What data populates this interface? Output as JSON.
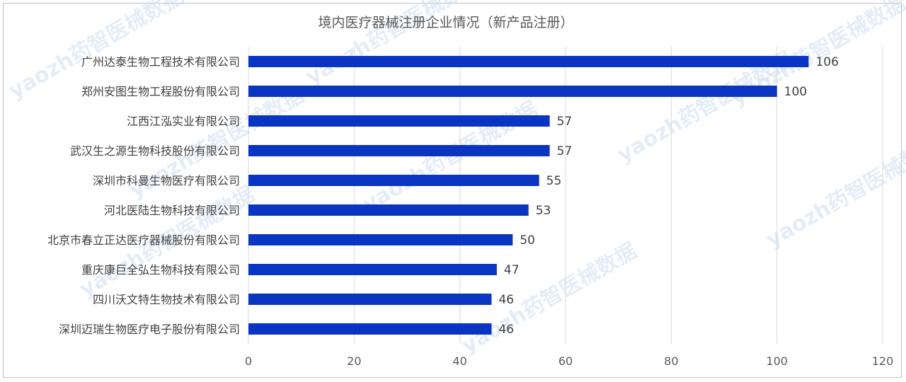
{
  "chart_data": {
    "type": "bar",
    "orientation": "horizontal",
    "title": "境内医疗器械注册企业情况（新产品注册）",
    "categories": [
      "广州达泰生物工程技术有限公司",
      "郑州安图生物工程股份有限公司",
      "江西江泓实业有限公司",
      "武汉生之源生物科技股份有限公司",
      "深圳市科曼生物医疗有限公司",
      "河北医陆生物科技有限公司",
      "北京市春立正达医疗器械股份有限公司",
      "重庆康巨全弘生物科技有限公司",
      "四川沃文特生物技术有限公司",
      "深圳迈瑞生物医疗电子股份有限公司"
    ],
    "values": [
      106,
      100,
      57,
      57,
      55,
      53,
      50,
      47,
      46,
      46
    ],
    "xlim": [
      0,
      120
    ],
    "xticks": [
      0,
      20,
      40,
      60,
      80,
      100,
      120
    ],
    "grid": true,
    "bar_color": "#0a34c2",
    "watermark": "yaozh药智医械数据"
  }
}
